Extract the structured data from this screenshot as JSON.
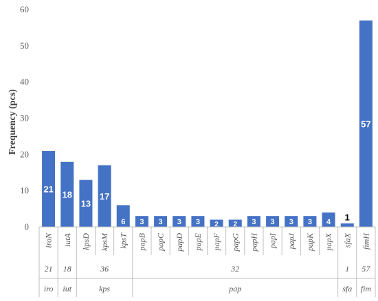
{
  "chart_data": {
    "type": "bar",
    "ylabel": "Frequency (pcs)",
    "ylim": [
      0,
      60
    ],
    "yticks": [
      0,
      10,
      20,
      30,
      40,
      50,
      60
    ],
    "grid": false,
    "bar_color": "#4472c4",
    "categories": [
      "iroN",
      "iutA",
      "kpsD",
      "kpsM",
      "kpsT",
      "papB",
      "papC",
      "papD",
      "papE",
      "papF",
      "papG",
      "papH",
      "papI",
      "papJ",
      "papK",
      "papX",
      "sfaX",
      "fimH"
    ],
    "values": [
      21,
      18,
      13,
      17,
      6,
      3,
      3,
      3,
      3,
      2,
      2,
      3,
      3,
      3,
      3,
      4,
      1,
      57
    ],
    "data_labels": [
      "21",
      "18",
      "13",
      "17",
      "6",
      "3",
      "3",
      "3",
      "3",
      "2",
      "2",
      "3",
      "3",
      "3",
      "3",
      "4",
      "1",
      "57"
    ],
    "groups": [
      {
        "name": "iro",
        "total": "21",
        "count": 1
      },
      {
        "name": "iut",
        "total": "18",
        "count": 1
      },
      {
        "name": "kps",
        "total": "36",
        "count": 3
      },
      {
        "name": "pap",
        "total": "32",
        "count": 11
      },
      {
        "name": "sfa",
        "total": "1",
        "count": 1
      },
      {
        "name": "fim",
        "total": "57",
        "count": 1
      }
    ]
  }
}
